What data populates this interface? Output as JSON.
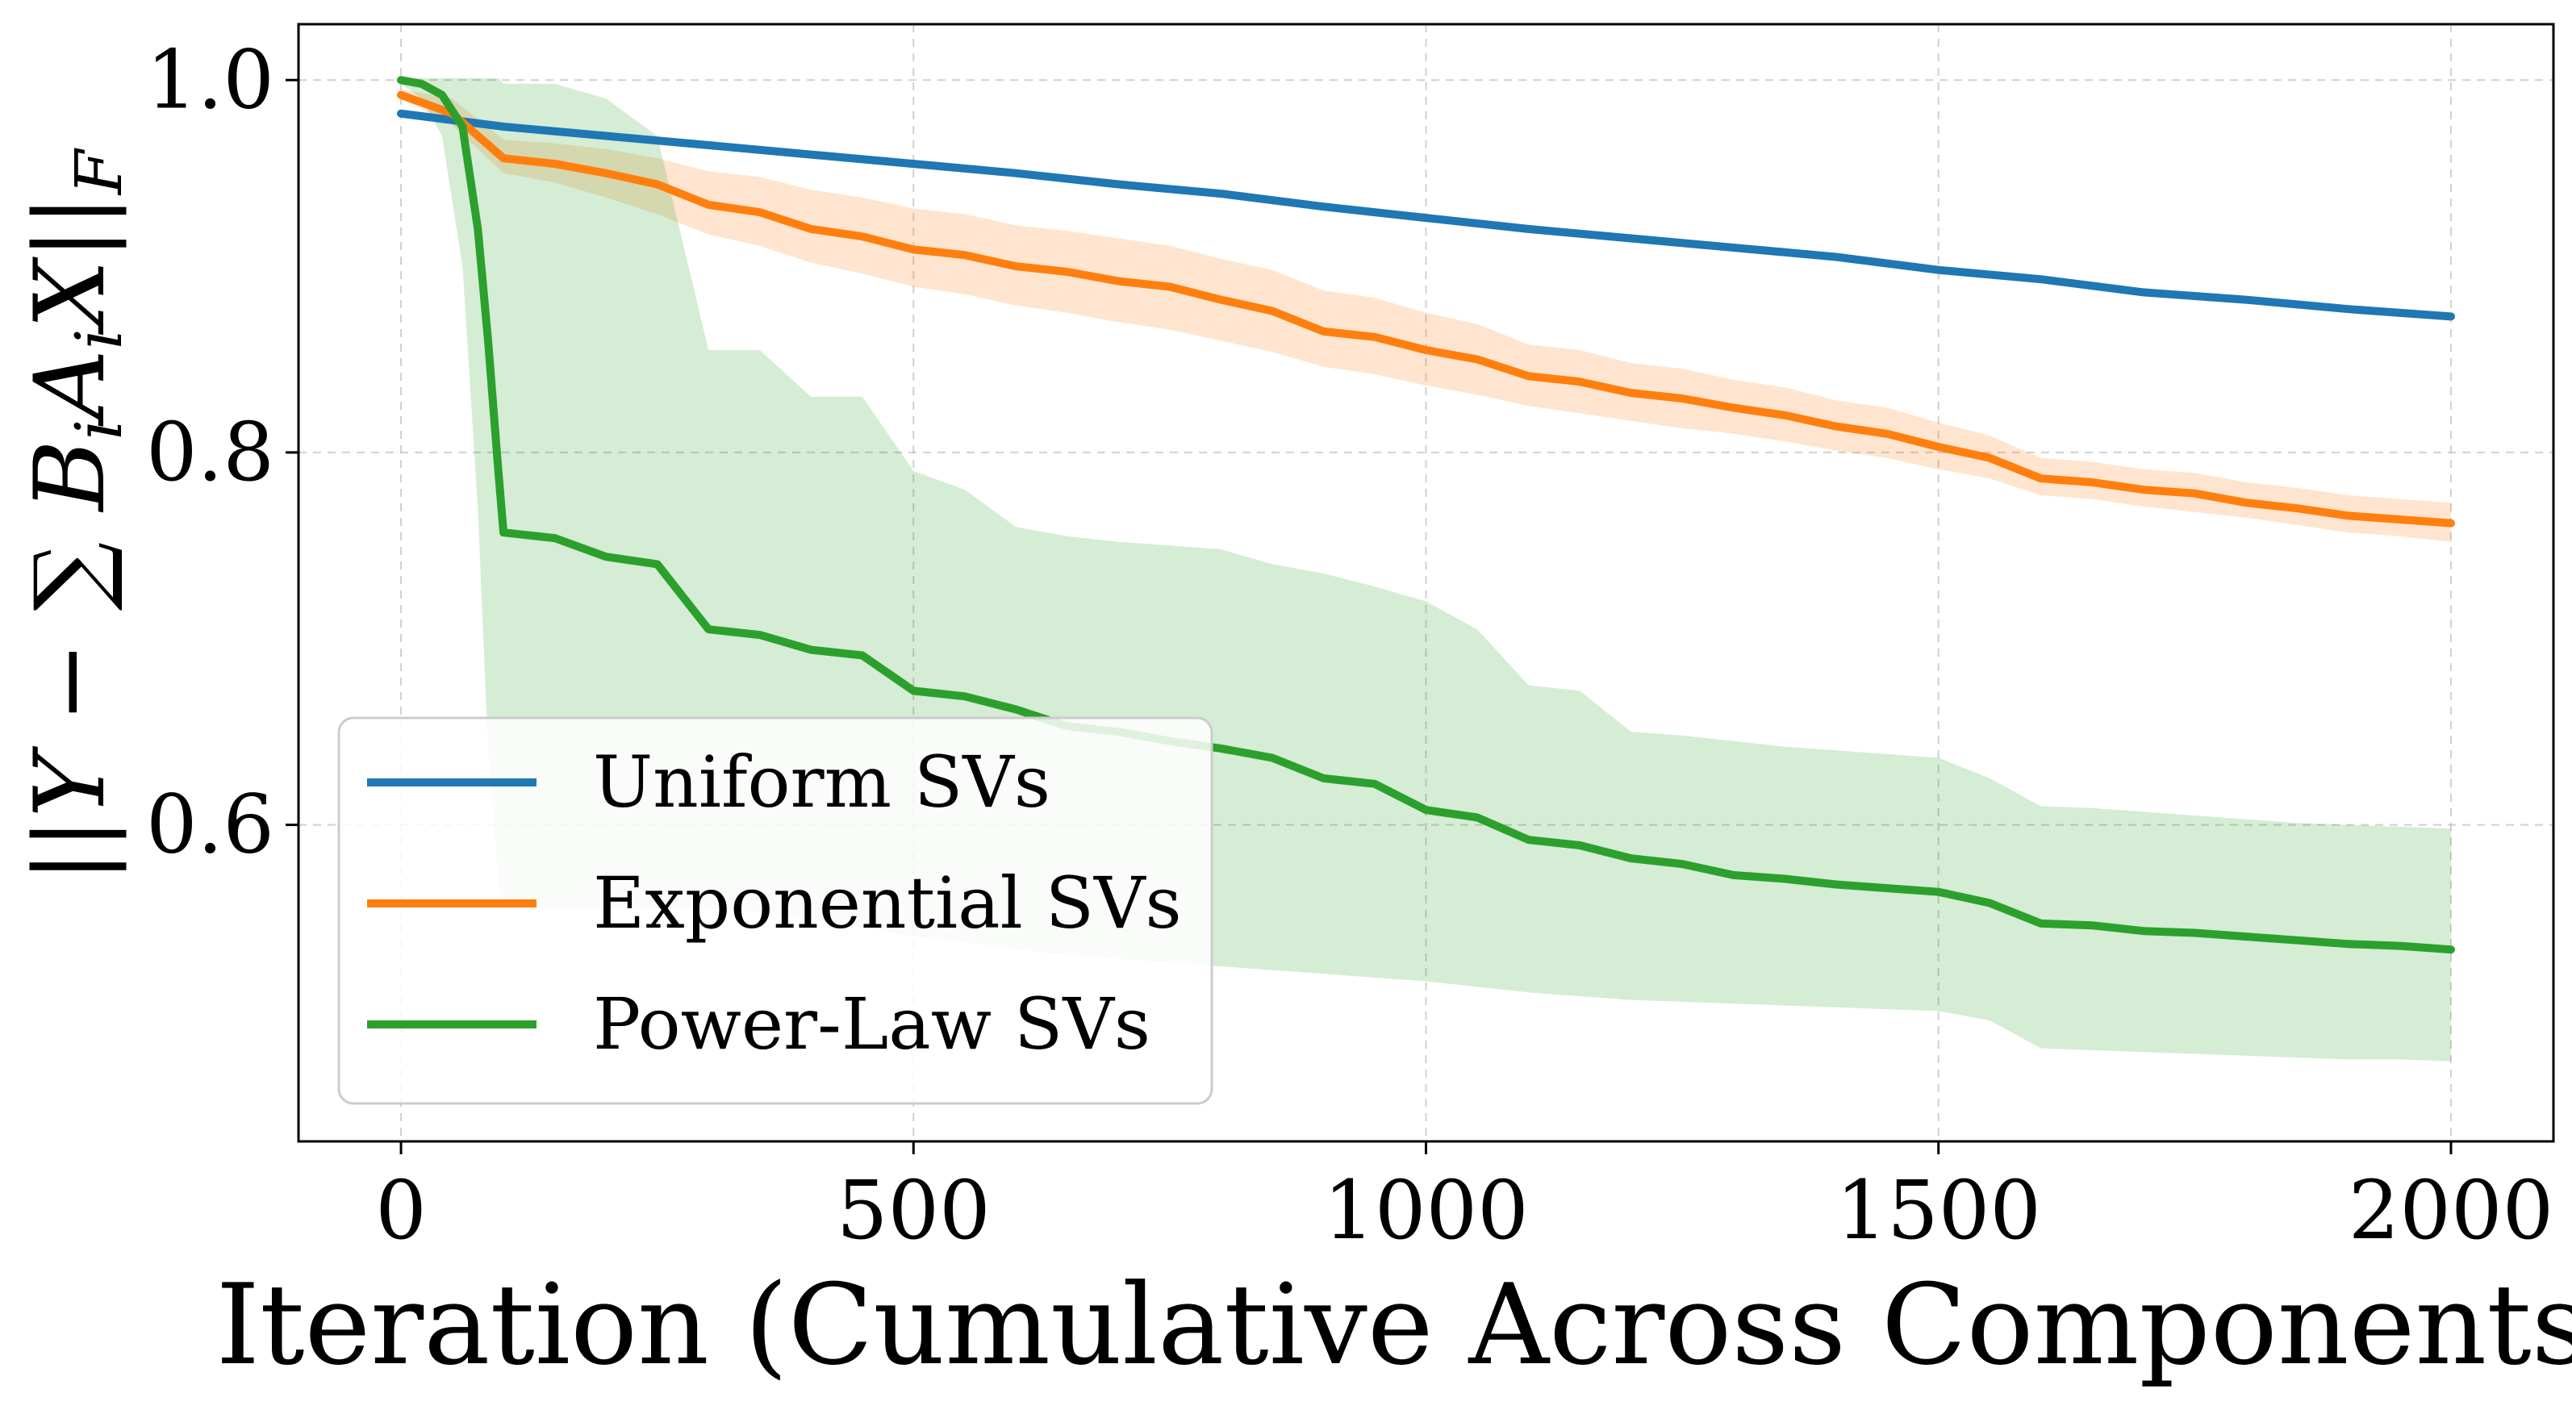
{
  "chart_data": {
    "type": "line",
    "title": "",
    "xlabel": "Iteration (Cumulative Across Components)",
    "ylabel": "||Y − ∑ B_i A_i X||_F",
    "ylabel_parts": {
      "open": "||",
      "Y": "Y",
      "minus": " − ",
      "sum": "∑",
      "B": " B",
      "A": "A",
      "X": "X",
      "close": "||",
      "sub_i": "i",
      "sub_F": "F"
    },
    "xlim": [
      -100,
      2100
    ],
    "ylim": [
      0.43,
      1.03
    ],
    "xticks": [
      0,
      500,
      1000,
      1500,
      2000
    ],
    "xtick_labels": [
      "0",
      "500",
      "1000",
      "1500",
      "2000"
    ],
    "yticks": [
      0.6,
      0.8,
      1.0
    ],
    "ytick_labels": [
      "0.6",
      "0.8",
      "1.0"
    ],
    "grid": true,
    "legend_position": "lower-left",
    "series": [
      {
        "name": "Uniform SVs",
        "color": "#1f77b4",
        "x": [
          0,
          100,
          200,
          300,
          400,
          500,
          600,
          700,
          800,
          900,
          1000,
          1100,
          1200,
          1300,
          1400,
          1500,
          1600,
          1700,
          1800,
          1900,
          2000
        ],
        "y": [
          0.982,
          0.975,
          0.97,
          0.965,
          0.96,
          0.955,
          0.95,
          0.944,
          0.939,
          0.932,
          0.926,
          0.92,
          0.915,
          0.91,
          0.905,
          0.898,
          0.893,
          0.886,
          0.882,
          0.877,
          0.873
        ],
        "band_low": [
          0.98,
          0.973,
          0.968,
          0.963,
          0.958,
          0.953,
          0.948,
          0.942,
          0.937,
          0.93,
          0.924,
          0.918,
          0.913,
          0.908,
          0.903,
          0.896,
          0.891,
          0.884,
          0.88,
          0.875,
          0.871
        ],
        "band_high": [
          0.984,
          0.977,
          0.972,
          0.967,
          0.962,
          0.957,
          0.952,
          0.946,
          0.941,
          0.934,
          0.928,
          0.922,
          0.917,
          0.912,
          0.907,
          0.9,
          0.895,
          0.888,
          0.884,
          0.879,
          0.875
        ]
      },
      {
        "name": "Exponential SVs",
        "color": "#ff7f0e",
        "x": [
          0,
          50,
          100,
          150,
          200,
          250,
          300,
          350,
          400,
          450,
          500,
          550,
          600,
          650,
          700,
          750,
          800,
          850,
          900,
          950,
          1000,
          1050,
          1100,
          1150,
          1200,
          1250,
          1300,
          1350,
          1400,
          1450,
          1500,
          1550,
          1600,
          1650,
          1700,
          1750,
          1800,
          1850,
          1900,
          1950,
          2000
        ],
        "y": [
          0.992,
          0.982,
          0.958,
          0.955,
          0.95,
          0.944,
          0.933,
          0.929,
          0.92,
          0.916,
          0.909,
          0.906,
          0.9,
          0.897,
          0.892,
          0.889,
          0.882,
          0.876,
          0.865,
          0.862,
          0.855,
          0.85,
          0.841,
          0.838,
          0.832,
          0.829,
          0.824,
          0.82,
          0.814,
          0.81,
          0.803,
          0.797,
          0.786,
          0.784,
          0.78,
          0.778,
          0.773,
          0.77,
          0.766,
          0.764,
          0.762
        ],
        "band_low": [
          0.99,
          0.976,
          0.95,
          0.945,
          0.937,
          0.928,
          0.917,
          0.911,
          0.902,
          0.896,
          0.889,
          0.885,
          0.879,
          0.875,
          0.87,
          0.866,
          0.86,
          0.854,
          0.846,
          0.842,
          0.836,
          0.831,
          0.825,
          0.821,
          0.817,
          0.813,
          0.81,
          0.806,
          0.801,
          0.797,
          0.791,
          0.786,
          0.777,
          0.775,
          0.771,
          0.768,
          0.765,
          0.761,
          0.757,
          0.755,
          0.752
        ],
        "band_high": [
          0.995,
          0.99,
          0.968,
          0.966,
          0.963,
          0.958,
          0.951,
          0.948,
          0.941,
          0.937,
          0.931,
          0.928,
          0.922,
          0.919,
          0.915,
          0.911,
          0.904,
          0.898,
          0.887,
          0.883,
          0.875,
          0.869,
          0.858,
          0.855,
          0.848,
          0.845,
          0.839,
          0.835,
          0.828,
          0.824,
          0.816,
          0.809,
          0.797,
          0.795,
          0.791,
          0.789,
          0.784,
          0.781,
          0.777,
          0.775,
          0.773
        ]
      },
      {
        "name": "Power-Law SVs",
        "color": "#2ca02c",
        "x": [
          0,
          20,
          40,
          60,
          75,
          85,
          95,
          100,
          150,
          200,
          250,
          300,
          350,
          400,
          450,
          500,
          550,
          600,
          650,
          700,
          750,
          800,
          850,
          900,
          950,
          1000,
          1050,
          1100,
          1150,
          1200,
          1250,
          1300,
          1350,
          1400,
          1450,
          1500,
          1550,
          1600,
          1650,
          1700,
          1750,
          1800,
          1850,
          1900,
          1950,
          2000
        ],
        "y": [
          1.0,
          0.998,
          0.992,
          0.975,
          0.92,
          0.86,
          0.79,
          0.757,
          0.754,
          0.744,
          0.74,
          0.705,
          0.702,
          0.694,
          0.691,
          0.672,
          0.669,
          0.662,
          0.653,
          0.65,
          0.645,
          0.641,
          0.636,
          0.625,
          0.622,
          0.608,
          0.604,
          0.592,
          0.589,
          0.582,
          0.579,
          0.573,
          0.571,
          0.568,
          0.566,
          0.564,
          0.558,
          0.547,
          0.546,
          0.543,
          0.542,
          0.54,
          0.538,
          0.536,
          0.535,
          0.533
        ],
        "band_low": [
          0.998,
          0.99,
          0.97,
          0.9,
          0.77,
          0.64,
          0.57,
          0.555,
          0.555,
          0.555,
          0.555,
          0.555,
          0.553,
          0.549,
          0.545,
          0.54,
          0.537,
          0.533,
          0.53,
          0.528,
          0.526,
          0.524,
          0.522,
          0.52,
          0.518,
          0.516,
          0.513,
          0.51,
          0.508,
          0.506,
          0.505,
          0.504,
          0.503,
          0.502,
          0.501,
          0.5,
          0.495,
          0.48,
          0.479,
          0.478,
          0.477,
          0.476,
          0.475,
          0.474,
          0.474,
          0.473
        ],
        "band_high": [
          1.001,
          1.001,
          1.001,
          1.001,
          1.001,
          1.001,
          1.001,
          0.998,
          0.998,
          0.99,
          0.97,
          0.855,
          0.855,
          0.83,
          0.83,
          0.79,
          0.78,
          0.76,
          0.755,
          0.752,
          0.75,
          0.748,
          0.74,
          0.735,
          0.728,
          0.72,
          0.705,
          0.675,
          0.672,
          0.65,
          0.648,
          0.645,
          0.642,
          0.64,
          0.638,
          0.636,
          0.625,
          0.61,
          0.609,
          0.607,
          0.605,
          0.603,
          0.601,
          0.6,
          0.599,
          0.598
        ]
      }
    ]
  }
}
